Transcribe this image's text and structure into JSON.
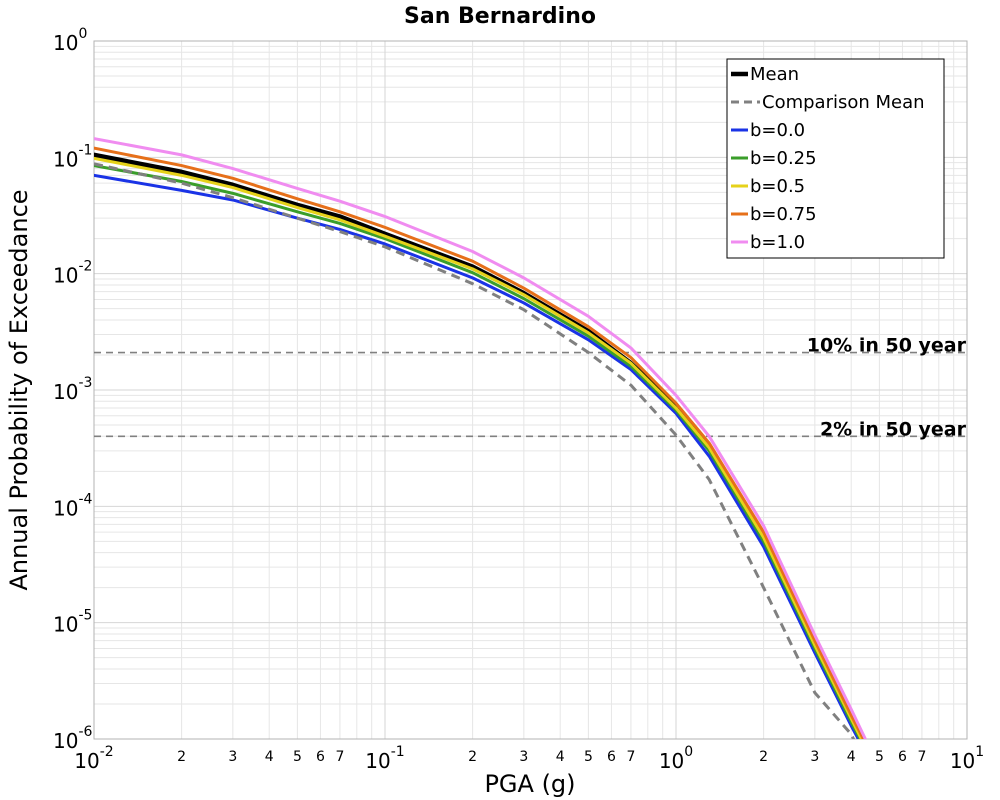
{
  "chart_data": {
    "type": "line",
    "title": "San Bernardino",
    "xlabel": "PGA (g)",
    "ylabel": "Annual Probability of Exceedance",
    "x_scale": "log",
    "y_scale": "log",
    "xlim": [
      0.01,
      10
    ],
    "ylim": [
      1e-06,
      1
    ],
    "grid": true,
    "legend_position": "top-right",
    "series": [
      {
        "name": "Mean",
        "color": "#000000",
        "style": "solid",
        "x": [
          0.01,
          0.02,
          0.03,
          0.05,
          0.07,
          0.1,
          0.2,
          0.3,
          0.5,
          0.7,
          1.0,
          1.3,
          2.0,
          3.0,
          4.0,
          4.5
        ],
        "y": [
          0.105,
          0.075,
          0.058,
          0.039,
          0.031,
          0.022,
          0.0115,
          0.0068,
          0.0032,
          0.0017,
          0.00072,
          0.00032,
          5.5e-05,
          6.5e-06,
          1.5e-06,
          8.2e-07
        ]
      },
      {
        "name": "Comparison Mean",
        "color": "#808080",
        "style": "dashed",
        "x": [
          0.01,
          0.02,
          0.03,
          0.05,
          0.07,
          0.1,
          0.2,
          0.3,
          0.5,
          0.7,
          1.0,
          1.3,
          2.0,
          3.0,
          4.0,
          4.2
        ],
        "y": [
          0.088,
          0.06,
          0.045,
          0.03,
          0.023,
          0.017,
          0.0082,
          0.0049,
          0.0021,
          0.0011,
          0.00041,
          0.00017,
          2e-05,
          2.5e-06,
          1.1e-06,
          8.5e-07
        ]
      },
      {
        "name": "b=0.0",
        "color": "#1a33e6",
        "style": "solid",
        "x": [
          0.01,
          0.02,
          0.03,
          0.05,
          0.07,
          0.1,
          0.2,
          0.3,
          0.5,
          0.7,
          1.0,
          1.3,
          2.0,
          3.0,
          4.0,
          4.5
        ],
        "y": [
          0.07,
          0.052,
          0.043,
          0.03,
          0.024,
          0.018,
          0.0092,
          0.0056,
          0.0027,
          0.0015,
          0.00063,
          0.00027,
          4.5e-05,
          5.5e-06,
          1.3e-06,
          7.5e-07
        ]
      },
      {
        "name": "b=0.25",
        "color": "#3a9e2a",
        "style": "solid",
        "x": [
          0.01,
          0.02,
          0.03,
          0.05,
          0.07,
          0.1,
          0.2,
          0.3,
          0.5,
          0.7,
          1.0,
          1.3,
          2.0,
          3.0,
          4.0,
          4.5
        ],
        "y": [
          0.085,
          0.062,
          0.049,
          0.034,
          0.027,
          0.02,
          0.0102,
          0.0061,
          0.0029,
          0.0016,
          0.00067,
          0.0003,
          5e-05,
          6e-06,
          1.4e-06,
          8e-07
        ]
      },
      {
        "name": "b=0.5",
        "color": "#e6d21a",
        "style": "solid",
        "x": [
          0.01,
          0.02,
          0.03,
          0.05,
          0.07,
          0.1,
          0.2,
          0.3,
          0.5,
          0.7,
          1.0,
          1.3,
          2.0,
          3.0,
          4.0,
          4.5
        ],
        "y": [
          0.098,
          0.07,
          0.055,
          0.037,
          0.029,
          0.021,
          0.011,
          0.0066,
          0.0031,
          0.0017,
          0.0007,
          0.00032,
          5.4e-05,
          6.4e-06,
          1.5e-06,
          8.3e-07
        ]
      },
      {
        "name": "b=0.75",
        "color": "#e6701a",
        "style": "solid",
        "x": [
          0.01,
          0.02,
          0.03,
          0.05,
          0.07,
          0.1,
          0.2,
          0.3,
          0.5,
          0.7,
          1.0,
          1.3,
          2.0,
          3.0,
          4.0,
          4.5
        ],
        "y": [
          0.12,
          0.085,
          0.066,
          0.044,
          0.034,
          0.025,
          0.0128,
          0.0075,
          0.0035,
          0.0019,
          0.00077,
          0.00035,
          6e-05,
          7e-06,
          1.6e-06,
          9e-07
        ]
      },
      {
        "name": "b=1.0",
        "color": "#f08cf0",
        "style": "solid",
        "x": [
          0.01,
          0.02,
          0.03,
          0.05,
          0.07,
          0.1,
          0.2,
          0.3,
          0.5,
          0.7,
          1.0,
          1.3,
          2.0,
          3.0,
          4.0,
          4.5
        ],
        "y": [
          0.145,
          0.105,
          0.08,
          0.054,
          0.042,
          0.031,
          0.0155,
          0.0092,
          0.0043,
          0.0023,
          0.0009,
          0.0004,
          6.8e-05,
          7.8e-06,
          1.8e-06,
          9.7e-07
        ]
      }
    ],
    "reference_lines": [
      {
        "label": "10% in 50 year",
        "y": 0.0021,
        "color": "#808080",
        "style": "dashed"
      },
      {
        "label": "2% in 50 year",
        "y": 0.0004,
        "color": "#808080",
        "style": "dashed"
      }
    ],
    "x_ticks": {
      "major": [
        {
          "value": 0.01,
          "base": "10",
          "exp": "-2"
        },
        {
          "value": 0.1,
          "base": "10",
          "exp": "-1"
        },
        {
          "value": 1,
          "base": "10",
          "exp": "0"
        },
        {
          "value": 10,
          "base": "10",
          "exp": "1"
        }
      ],
      "minor_labels": [
        "2",
        "3",
        "4",
        "5",
        "6",
        "7"
      ]
    },
    "y_ticks": {
      "major": [
        {
          "value": 1,
          "base": "10",
          "exp": "0"
        },
        {
          "value": 0.1,
          "base": "10",
          "exp": "-1"
        },
        {
          "value": 0.01,
          "base": "10",
          "exp": "-2"
        },
        {
          "value": 0.001,
          "base": "10",
          "exp": "-3"
        },
        {
          "value": 0.0001,
          "base": "10",
          "exp": "-4"
        },
        {
          "value": 1e-05,
          "base": "10",
          "exp": "-5"
        },
        {
          "value": 1e-06,
          "base": "10",
          "exp": "-6"
        }
      ]
    },
    "colors": {
      "grid": "#e6e6e6",
      "axes_frame": "#b3b3b3"
    }
  }
}
